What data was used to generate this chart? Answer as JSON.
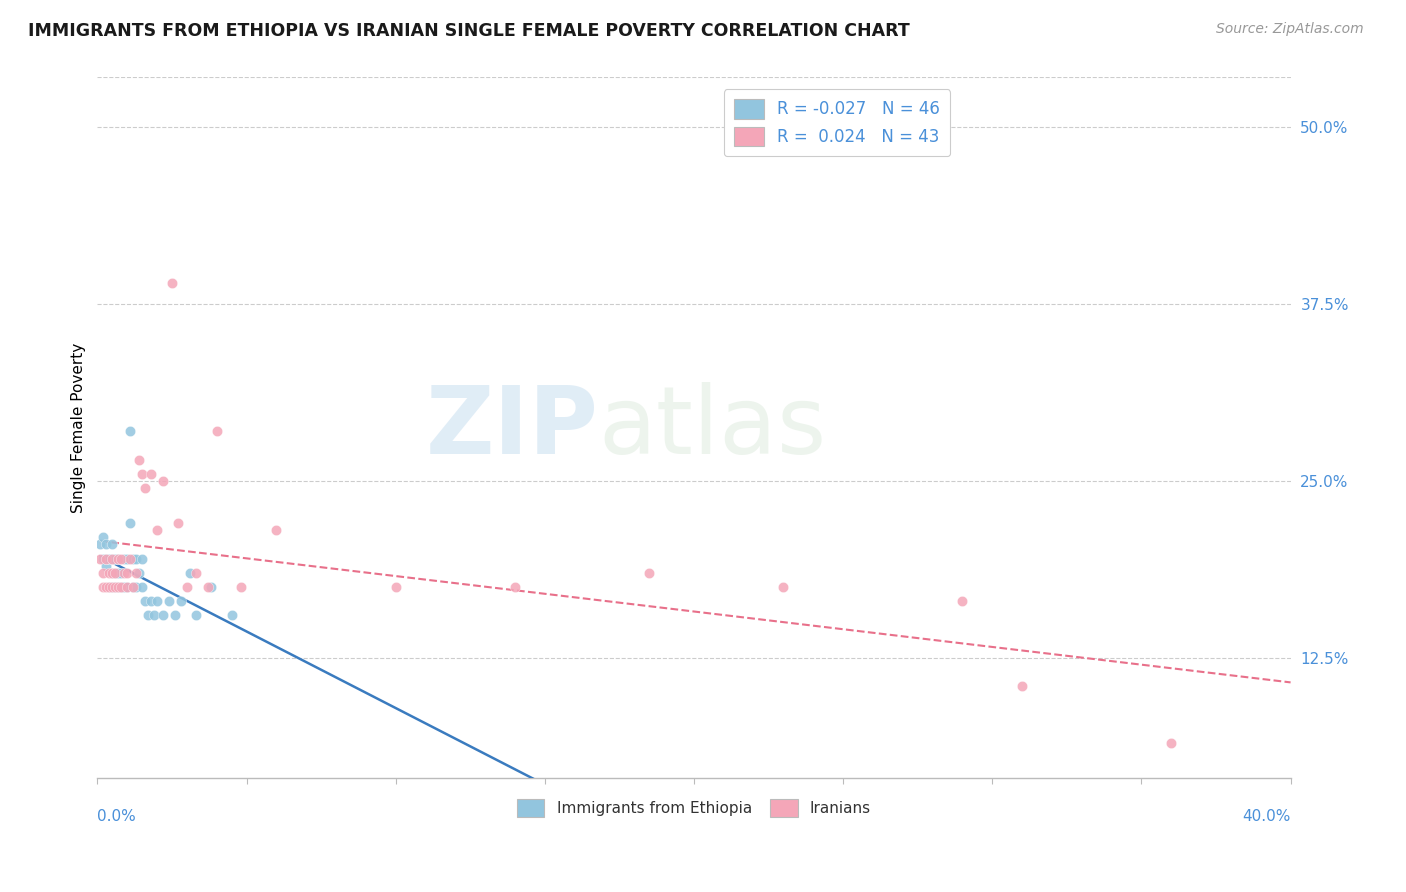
{
  "title": "IMMIGRANTS FROM ETHIOPIA VS IRANIAN SINGLE FEMALE POVERTY CORRELATION CHART",
  "source": "Source: ZipAtlas.com",
  "ylabel": "Single Female Poverty",
  "xmin": 0.0,
  "xmax": 0.4,
  "ymin": 0.04,
  "ymax": 0.535,
  "color_blue": "#92c5de",
  "color_pink": "#f4a6b8",
  "line_color_blue": "#3a7bbf",
  "line_color_pink": "#e8708a",
  "watermark_zip": "ZIP",
  "watermark_atlas": "atlas",
  "ethiopia_x": [
    0.001,
    0.002,
    0.002,
    0.003,
    0.003,
    0.003,
    0.004,
    0.004,
    0.005,
    0.005,
    0.005,
    0.005,
    0.006,
    0.006,
    0.006,
    0.007,
    0.007,
    0.007,
    0.008,
    0.008,
    0.009,
    0.009,
    0.01,
    0.01,
    0.011,
    0.011,
    0.012,
    0.012,
    0.013,
    0.013,
    0.014,
    0.015,
    0.015,
    0.016,
    0.017,
    0.018,
    0.019,
    0.02,
    0.022,
    0.024,
    0.026,
    0.028,
    0.031,
    0.033,
    0.038,
    0.045
  ],
  "ethiopia_y": [
    0.205,
    0.195,
    0.21,
    0.19,
    0.195,
    0.205,
    0.195,
    0.175,
    0.175,
    0.195,
    0.185,
    0.205,
    0.185,
    0.195,
    0.175,
    0.185,
    0.175,
    0.195,
    0.185,
    0.175,
    0.195,
    0.175,
    0.195,
    0.175,
    0.285,
    0.22,
    0.195,
    0.175,
    0.175,
    0.195,
    0.185,
    0.195,
    0.175,
    0.165,
    0.155,
    0.165,
    0.155,
    0.165,
    0.155,
    0.165,
    0.155,
    0.165,
    0.185,
    0.155,
    0.175,
    0.155
  ],
  "iranians_x": [
    0.001,
    0.002,
    0.002,
    0.003,
    0.003,
    0.004,
    0.004,
    0.005,
    0.005,
    0.005,
    0.006,
    0.006,
    0.007,
    0.007,
    0.008,
    0.008,
    0.009,
    0.01,
    0.01,
    0.011,
    0.012,
    0.013,
    0.014,
    0.015,
    0.016,
    0.018,
    0.02,
    0.022,
    0.025,
    0.027,
    0.03,
    0.033,
    0.037,
    0.04,
    0.048,
    0.06,
    0.1,
    0.14,
    0.185,
    0.23,
    0.29,
    0.31,
    0.36
  ],
  "iranians_y": [
    0.195,
    0.185,
    0.175,
    0.195,
    0.175,
    0.185,
    0.175,
    0.195,
    0.185,
    0.175,
    0.185,
    0.175,
    0.195,
    0.175,
    0.195,
    0.175,
    0.185,
    0.185,
    0.175,
    0.195,
    0.175,
    0.185,
    0.265,
    0.255,
    0.245,
    0.255,
    0.215,
    0.25,
    0.39,
    0.22,
    0.175,
    0.185,
    0.175,
    0.285,
    0.175,
    0.215,
    0.175,
    0.175,
    0.185,
    0.175,
    0.165,
    0.105,
    0.065
  ]
}
